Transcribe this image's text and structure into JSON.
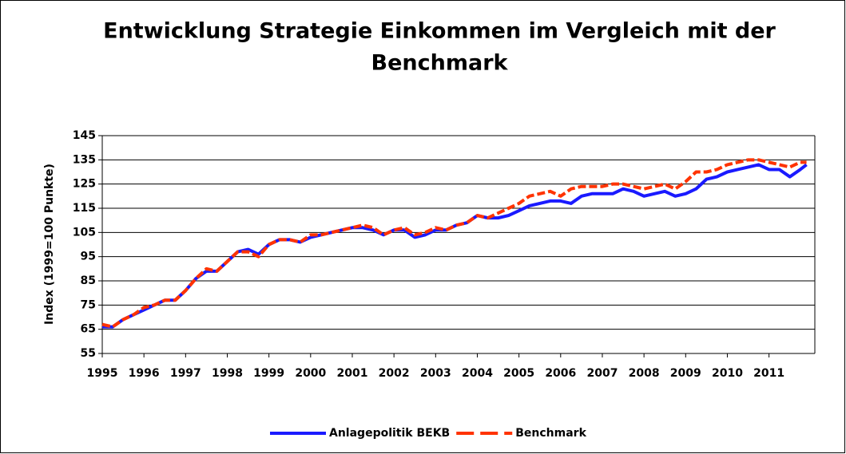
{
  "chart_data": {
    "type": "line",
    "title_lines": [
      "Entwicklung Strategie Einkommen im Vergleich mit der",
      "Benchmark"
    ],
    "y_label": "Index (1999=100 Punkte)",
    "x": [
      1995,
      1995.25,
      1995.5,
      1995.75,
      1996,
      1996.25,
      1996.5,
      1996.75,
      1997,
      1997.25,
      1997.5,
      1997.75,
      1998,
      1998.25,
      1998.5,
      1998.75,
      1999,
      1999.25,
      1999.5,
      1999.75,
      2000,
      2000.25,
      2000.5,
      2000.75,
      2001,
      2001.25,
      2001.5,
      2001.75,
      2002,
      2002.25,
      2002.5,
      2002.75,
      2003,
      2003.25,
      2003.5,
      2003.75,
      2004,
      2004.25,
      2004.5,
      2004.75,
      2005,
      2005.25,
      2005.5,
      2005.75,
      2006,
      2006.25,
      2006.5,
      2006.75,
      2007,
      2007.25,
      2007.5,
      2007.75,
      2008,
      2008.25,
      2008.5,
      2008.75,
      2009,
      2009.25,
      2009.5,
      2009.75,
      2010,
      2010.25,
      2010.5,
      2010.75,
      2011,
      2011.25,
      2011.5,
      2011.75,
      2011.9
    ],
    "series": [
      {
        "name": "Anlagepolitik BEKB",
        "color": "#1a1aff",
        "dashed": false,
        "values": [
          66,
          66,
          69,
          71,
          73,
          75,
          77,
          77,
          81,
          86,
          89,
          89,
          93,
          97,
          98,
          96,
          100,
          102,
          102,
          101,
          103,
          104,
          105,
          106,
          107,
          107,
          106,
          104,
          106,
          106,
          103,
          104,
          106,
          106,
          108,
          109,
          112,
          111,
          111,
          112,
          114,
          116,
          117,
          118,
          118,
          117,
          120,
          121,
          121,
          121,
          123,
          122,
          120,
          121,
          122,
          120,
          121,
          123,
          127,
          128,
          130,
          131,
          132,
          133,
          131,
          131,
          128,
          131,
          133
        ]
      },
      {
        "name": "Benchmark",
        "color": "#ff3300",
        "dashed": true,
        "values": [
          67,
          66,
          69,
          71,
          74,
          75,
          77,
          77,
          81,
          86,
          90,
          89,
          93,
          97,
          97,
          95,
          100,
          102,
          102,
          101,
          104,
          104,
          105,
          106,
          107,
          108,
          107,
          104,
          106,
          107,
          104,
          105,
          107,
          106,
          108,
          109,
          112,
          111,
          113,
          115,
          117,
          120,
          121,
          122,
          120,
          123,
          124,
          124,
          124,
          125,
          125,
          124,
          123,
          124,
          125,
          123,
          126,
          130,
          130,
          131,
          133,
          134,
          135,
          135,
          134,
          133,
          132,
          134,
          134
        ]
      }
    ],
    "xlim": [
      1995,
      2012.1
    ],
    "xticks": [
      1995,
      1996,
      1997,
      1998,
      1999,
      2000,
      2001,
      2002,
      2003,
      2004,
      2005,
      2006,
      2007,
      2008,
      2009,
      2010,
      2011
    ],
    "ylim": [
      55,
      145
    ],
    "yticks": [
      55,
      65,
      75,
      85,
      95,
      105,
      115,
      125,
      135,
      145
    ],
    "grid": true,
    "legend": "bottom"
  }
}
